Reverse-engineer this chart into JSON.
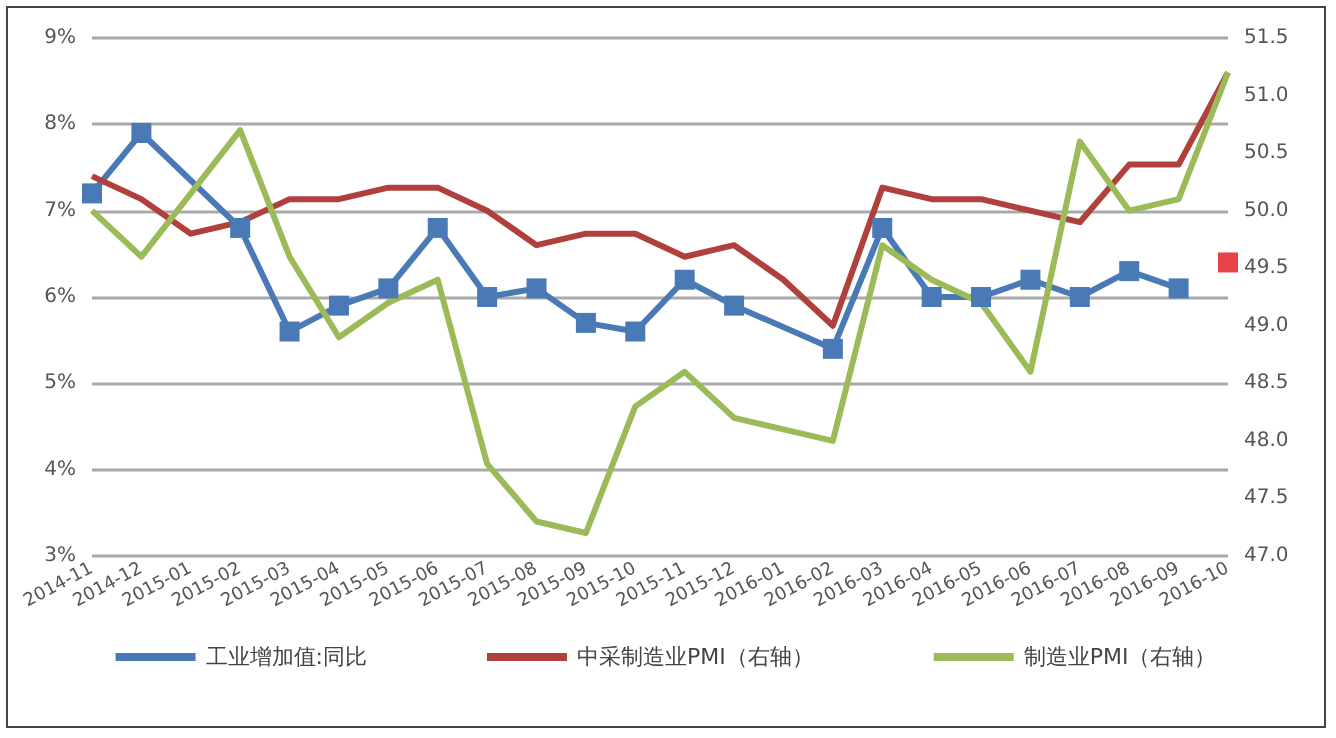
{
  "chart_data": {
    "type": "line",
    "categories": [
      "2014-11",
      "2014-12",
      "2015-01",
      "2015-02",
      "2015-03",
      "2015-04",
      "2015-05",
      "2015-06",
      "2015-07",
      "2015-08",
      "2015-09",
      "2015-10",
      "2015-11",
      "2015-12",
      "2016-01",
      "2016-02",
      "2016-03",
      "2016-04",
      "2016-05",
      "2016-06",
      "2016-07",
      "2016-08",
      "2016-09",
      "2016-10"
    ],
    "series": [
      {
        "name": "工业增加值:同比",
        "color": "#4a7ab5",
        "marker": "square",
        "values": [
          7.2,
          7.9,
          null,
          6.8,
          5.6,
          5.9,
          6.1,
          6.8,
          6.0,
          6.1,
          5.7,
          5.6,
          6.2,
          5.9,
          null,
          5.4,
          6.8,
          6.0,
          6.0,
          6.2,
          6.0,
          6.3,
          6.1,
          null
        ]
      },
      {
        "name": "中采制造业PMI（右轴）",
        "color": "#b0403c",
        "axis": "y2",
        "marker": "none",
        "values": [
          50.3,
          50.1,
          49.8,
          49.9,
          50.1,
          50.1,
          50.2,
          50.2,
          50.0,
          49.7,
          49.8,
          49.8,
          49.6,
          49.7,
          49.4,
          49.0,
          50.2,
          50.1,
          50.1,
          50.0,
          49.9,
          50.4,
          50.4,
          51.2
        ]
      },
      {
        "name": "制造业PMI（右轴）",
        "color": "#9bbb59",
        "axis": "y2",
        "marker": "none",
        "values": [
          50.0,
          49.6,
          null,
          50.7,
          49.6,
          48.9,
          49.2,
          49.4,
          47.8,
          47.3,
          47.2,
          48.3,
          48.6,
          48.2,
          48.1,
          48.0,
          49.7,
          49.4,
          49.2,
          48.6,
          50.6,
          50.0,
          50.1,
          51.2
        ]
      },
      {
        "type": "scatter",
        "color": "#e0141e",
        "marker": "square",
        "values": [
          null,
          null,
          null,
          null,
          null,
          null,
          null,
          null,
          null,
          null,
          null,
          null,
          null,
          null,
          null,
          null,
          null,
          null,
          null,
          null,
          null,
          null,
          null,
          6.4
        ]
      }
    ],
    "ylim": [
      3,
      9
    ],
    "yticks": [
      {
        "value": 3,
        "label": "3%"
      },
      {
        "value": 4,
        "label": "4%"
      },
      {
        "value": 5,
        "label": "5%"
      },
      {
        "value": 6,
        "label": "6%"
      },
      {
        "value": 7,
        "label": "7%"
      },
      {
        "value": 8,
        "label": "8%"
      },
      {
        "value": 9,
        "label": "9%"
      }
    ],
    "y2lim": [
      47,
      51.5
    ],
    "y2ticks": [
      {
        "value": 47,
        "label": "47.0"
      },
      {
        "value": 47.5,
        "label": "47.5"
      },
      {
        "value": 48,
        "label": "48.0"
      },
      {
        "value": 48.5,
        "label": "48.5"
      },
      {
        "value": 49,
        "label": "49.0"
      },
      {
        "value": 49.5,
        "label": "49.5"
      },
      {
        "value": 50,
        "label": "50.0"
      },
      {
        "value": 50.5,
        "label": "50.5"
      },
      {
        "value": 51,
        "label": "51.0"
      },
      {
        "value": 51.5,
        "label": "51.5"
      }
    ],
    "grid": "y",
    "legend": "bottom"
  }
}
